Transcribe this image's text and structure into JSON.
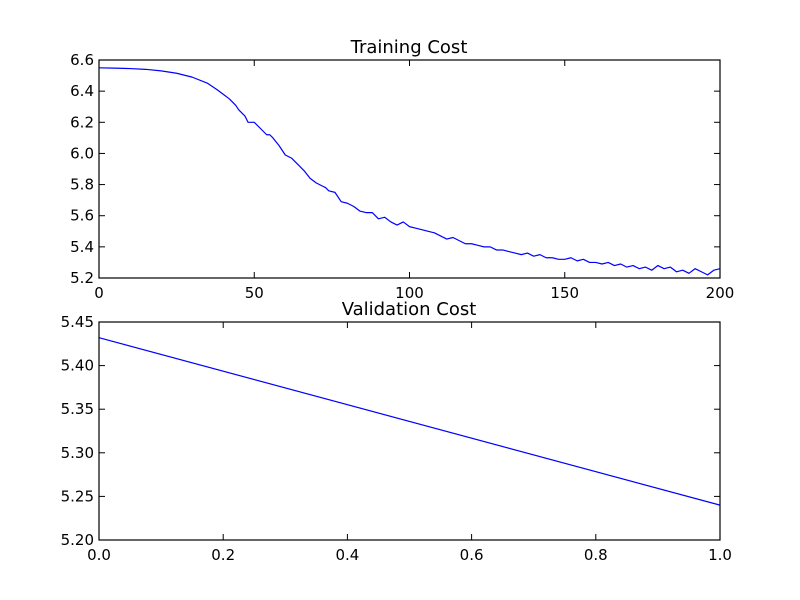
{
  "chart_data": [
    {
      "type": "line",
      "title": "Training Cost",
      "xlim": [
        0,
        200
      ],
      "ylim": [
        5.2,
        6.6
      ],
      "xticks": [
        "0",
        "50",
        "100",
        "150",
        "200"
      ],
      "yticks": [
        "5.2",
        "5.4",
        "5.6",
        "5.8",
        "6.0",
        "6.2",
        "6.4",
        "6.6"
      ],
      "grid": false,
      "series": [
        {
          "color": "#0000ff",
          "x": [
            0,
            5,
            10,
            15,
            20,
            25,
            30,
            35,
            38,
            40,
            42,
            44,
            45,
            46,
            47,
            48,
            50,
            52,
            54,
            55,
            56,
            58,
            60,
            62,
            64,
            66,
            68,
            70,
            72,
            73,
            74,
            76,
            78,
            80,
            82,
            84,
            86,
            88,
            90,
            92,
            94,
            96,
            98,
            100,
            102,
            104,
            106,
            108,
            110,
            112,
            114,
            116,
            118,
            120,
            122,
            124,
            126,
            128,
            130,
            132,
            134,
            136,
            138,
            140,
            142,
            144,
            146,
            148,
            150,
            152,
            154,
            156,
            158,
            160,
            162,
            164,
            166,
            168,
            170,
            172,
            174,
            176,
            178,
            180,
            182,
            184,
            186,
            188,
            190,
            192,
            194,
            196,
            198,
            200
          ],
          "y": [
            6.55,
            6.548,
            6.545,
            6.54,
            6.53,
            6.515,
            6.49,
            6.45,
            6.41,
            6.38,
            6.35,
            6.31,
            6.28,
            6.26,
            6.24,
            6.2,
            6.2,
            6.16,
            6.12,
            6.12,
            6.1,
            6.05,
            5.99,
            5.97,
            5.93,
            5.89,
            5.84,
            5.81,
            5.79,
            5.78,
            5.76,
            5.75,
            5.69,
            5.68,
            5.66,
            5.63,
            5.62,
            5.62,
            5.58,
            5.59,
            5.56,
            5.54,
            5.56,
            5.53,
            5.52,
            5.51,
            5.5,
            5.49,
            5.47,
            5.45,
            5.46,
            5.44,
            5.42,
            5.42,
            5.41,
            5.4,
            5.4,
            5.38,
            5.38,
            5.37,
            5.36,
            5.35,
            5.36,
            5.34,
            5.35,
            5.33,
            5.33,
            5.32,
            5.32,
            5.33,
            5.31,
            5.32,
            5.3,
            5.3,
            5.29,
            5.3,
            5.28,
            5.29,
            5.27,
            5.28,
            5.26,
            5.27,
            5.25,
            5.28,
            5.26,
            5.27,
            5.24,
            5.25,
            5.23,
            5.26,
            5.24,
            5.22,
            5.25,
            5.26
          ]
        }
      ]
    },
    {
      "type": "line",
      "title": "Validation Cost",
      "xlim": [
        0.0,
        1.0
      ],
      "ylim": [
        5.2,
        5.45
      ],
      "xticks": [
        "0.0",
        "0.2",
        "0.4",
        "0.6",
        "0.8",
        "1.0"
      ],
      "yticks": [
        "5.20",
        "5.25",
        "5.30",
        "5.35",
        "5.40",
        "5.45"
      ],
      "grid": false,
      "series": [
        {
          "color": "#0000ff",
          "x": [
            0.0,
            1.0
          ],
          "y": [
            5.432,
            5.24
          ]
        }
      ]
    }
  ]
}
